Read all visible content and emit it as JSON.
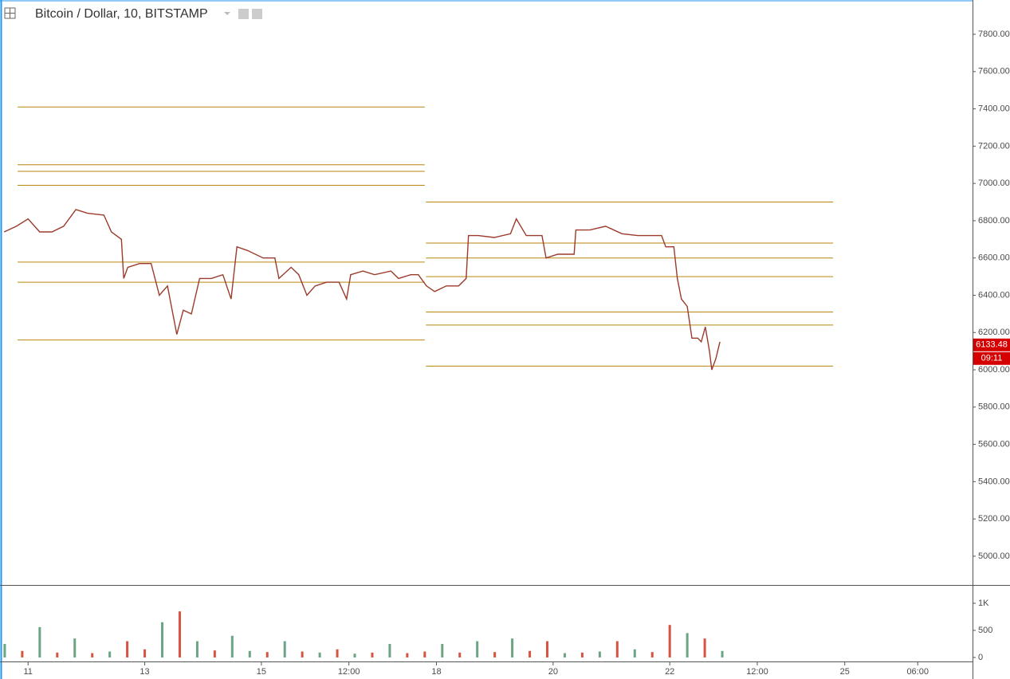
{
  "chart_data": [
    {
      "type": "line",
      "title": "Bitcoin / Dollar, 10, BITSTAMP",
      "x": [
        10.59,
        10.8,
        11.0,
        11.2,
        11.41,
        11.61,
        11.82,
        12.02,
        12.3,
        12.43,
        12.6,
        12.64,
        12.71,
        12.91,
        13.11,
        13.25,
        13.39,
        13.5,
        13.55,
        13.66,
        13.8,
        13.94,
        14.14,
        14.34,
        14.48,
        14.58,
        14.76,
        15.03,
        15.23,
        15.3,
        15.51,
        15.64,
        15.78,
        15.92,
        16.12,
        16.33,
        16.46,
        16.53,
        16.74,
        16.94,
        17.22,
        17.35,
        17.56,
        17.69,
        17.83,
        17.97,
        18.17,
        18.38,
        18.51,
        18.55,
        18.72,
        18.99,
        19.27,
        19.37,
        19.54,
        19.81,
        19.88,
        20.08,
        20.36,
        20.39,
        20.63,
        20.9,
        21.18,
        21.45,
        21.86,
        21.93,
        22.07,
        22.13,
        22.2,
        22.3,
        22.38,
        22.48,
        22.54,
        22.61,
        22.68,
        22.72,
        22.79,
        22.86
      ],
      "values": [
        6740,
        6770,
        6810,
        6740,
        6740,
        6770,
        6860,
        6840,
        6830,
        6740,
        6700,
        6490,
        6550,
        6570,
        6570,
        6400,
        6450,
        6270,
        6190,
        6320,
        6300,
        6490,
        6490,
        6510,
        6380,
        6660,
        6640,
        6600,
        6600,
        6490,
        6550,
        6510,
        6400,
        6450,
        6470,
        6470,
        6380,
        6510,
        6530,
        6510,
        6530,
        6490,
        6510,
        6510,
        6450,
        6420,
        6450,
        6450,
        6490,
        6720,
        6720,
        6710,
        6730,
        6810,
        6720,
        6720,
        6600,
        6620,
        6620,
        6750,
        6750,
        6770,
        6730,
        6720,
        6720,
        6660,
        6660,
        6490,
        6380,
        6340,
        6170,
        6170,
        6150,
        6230,
        6100,
        6000,
        6060,
        6150
      ],
      "color": "#9b3b2b",
      "levels": [
        {
          "y": 7410,
          "x": [
            10.82,
            17.8
          ]
        },
        {
          "y": 7100,
          "x": [
            10.82,
            17.8
          ]
        },
        {
          "y": 7065,
          "x": [
            10.82,
            17.8
          ]
        },
        {
          "y": 6990,
          "x": [
            10.82,
            17.8
          ]
        },
        {
          "y": 6578,
          "x": [
            10.82,
            17.8
          ]
        },
        {
          "y": 6470,
          "x": [
            10.82,
            17.8
          ]
        },
        {
          "y": 6160,
          "x": [
            10.82,
            17.8
          ]
        },
        {
          "y": 6900,
          "x": [
            17.82,
            24.8
          ]
        },
        {
          "y": 6680,
          "x": [
            17.82,
            24.8
          ]
        },
        {
          "y": 6600,
          "x": [
            17.82,
            24.8
          ]
        },
        {
          "y": 6500,
          "x": [
            17.82,
            24.8
          ]
        },
        {
          "y": 6310,
          "x": [
            17.82,
            24.8
          ]
        },
        {
          "y": 6240,
          "x": [
            17.82,
            24.8
          ]
        },
        {
          "y": 6020,
          "x": [
            17.82,
            24.8
          ]
        }
      ],
      "level_color": "#b8860b",
      "last_price": 6133.48,
      "countdown": "09:11",
      "last_price_color": "#d50000",
      "xlim": [
        10.56,
        27.19
      ],
      "xticks": [
        11,
        13,
        15,
        {
          "value": 16.5,
          "label": "12:00"
        },
        18,
        20,
        22,
        {
          "value": 23.5,
          "label": "12:00"
        },
        25,
        {
          "value": 26.25,
          "label": "06:00"
        }
      ],
      "ylim": [
        4850,
        7984
      ],
      "yticks": [
        {
          "value": 5000,
          "label": "5000.00"
        },
        {
          "value": 5200,
          "label": "5200.00"
        },
        {
          "value": 5400,
          "label": "5400.00"
        },
        {
          "value": 5600,
          "label": "5600.00"
        },
        {
          "value": 5800,
          "label": "5800.00"
        },
        {
          "value": 6000,
          "label": "6000.00"
        },
        {
          "value": 6200,
          "label": "6200.00"
        },
        {
          "value": 6400,
          "label": "6400.00"
        },
        {
          "value": 6600,
          "label": "6600.00"
        },
        {
          "value": 6800,
          "label": "6800.00"
        },
        {
          "value": 7000,
          "label": "7000.00"
        },
        {
          "value": 7200,
          "label": "7200.00"
        },
        {
          "value": 7400,
          "label": "7400.00"
        },
        {
          "value": 7600,
          "label": "7600.00"
        },
        {
          "value": 7800,
          "label": "7800.00"
        }
      ]
    },
    {
      "type": "bar",
      "x": [
        10.6,
        10.9,
        11.2,
        11.5,
        11.8,
        12.1,
        12.4,
        12.7,
        13.0,
        13.3,
        13.6,
        13.9,
        14.2,
        14.5,
        14.8,
        15.1,
        15.4,
        15.7,
        16.0,
        16.3,
        16.6,
        16.9,
        17.2,
        17.5,
        17.8,
        18.1,
        18.4,
        18.7,
        19.0,
        19.3,
        19.6,
        19.9,
        20.2,
        20.5,
        20.8,
        21.1,
        21.4,
        21.7,
        22.0,
        22.3,
        22.6,
        22.9
      ],
      "values": [
        250,
        120,
        560,
        90,
        350,
        80,
        110,
        300,
        150,
        650,
        850,
        300,
        130,
        400,
        120,
        100,
        300,
        110,
        90,
        150,
        70,
        90,
        250,
        80,
        110,
        250,
        90,
        300,
        100,
        350,
        120,
        300,
        80,
        90,
        110,
        300,
        150,
        100,
        600,
        450,
        350,
        120
      ],
      "colors": [
        "#6ba583",
        "#d75442",
        "#6ba583",
        "#d75442",
        "#6ba583",
        "#d75442",
        "#6ba583",
        "#d75442",
        "#d75442",
        "#6ba583",
        "#d75442",
        "#6ba583",
        "#d75442",
        "#6ba583",
        "#6ba583",
        "#d75442",
        "#6ba583",
        "#d75442",
        "#6ba583",
        "#d75442",
        "#6ba583",
        "#d75442",
        "#6ba583",
        "#d75442",
        "#d75442",
        "#6ba583",
        "#d75442",
        "#6ba583",
        "#d75442",
        "#6ba583",
        "#d75442",
        "#d75442",
        "#6ba583",
        "#d75442",
        "#6ba583",
        "#d75442",
        "#6ba583",
        "#d75442",
        "#d75442",
        "#6ba583",
        "#d75442",
        "#6ba583"
      ],
      "xlim": [
        10.56,
        27.19
      ],
      "ylim": [
        -74,
        1323
      ],
      "yticks": [
        0,
        500,
        {
          "value": 1000,
          "label": "1K"
        }
      ]
    }
  ]
}
